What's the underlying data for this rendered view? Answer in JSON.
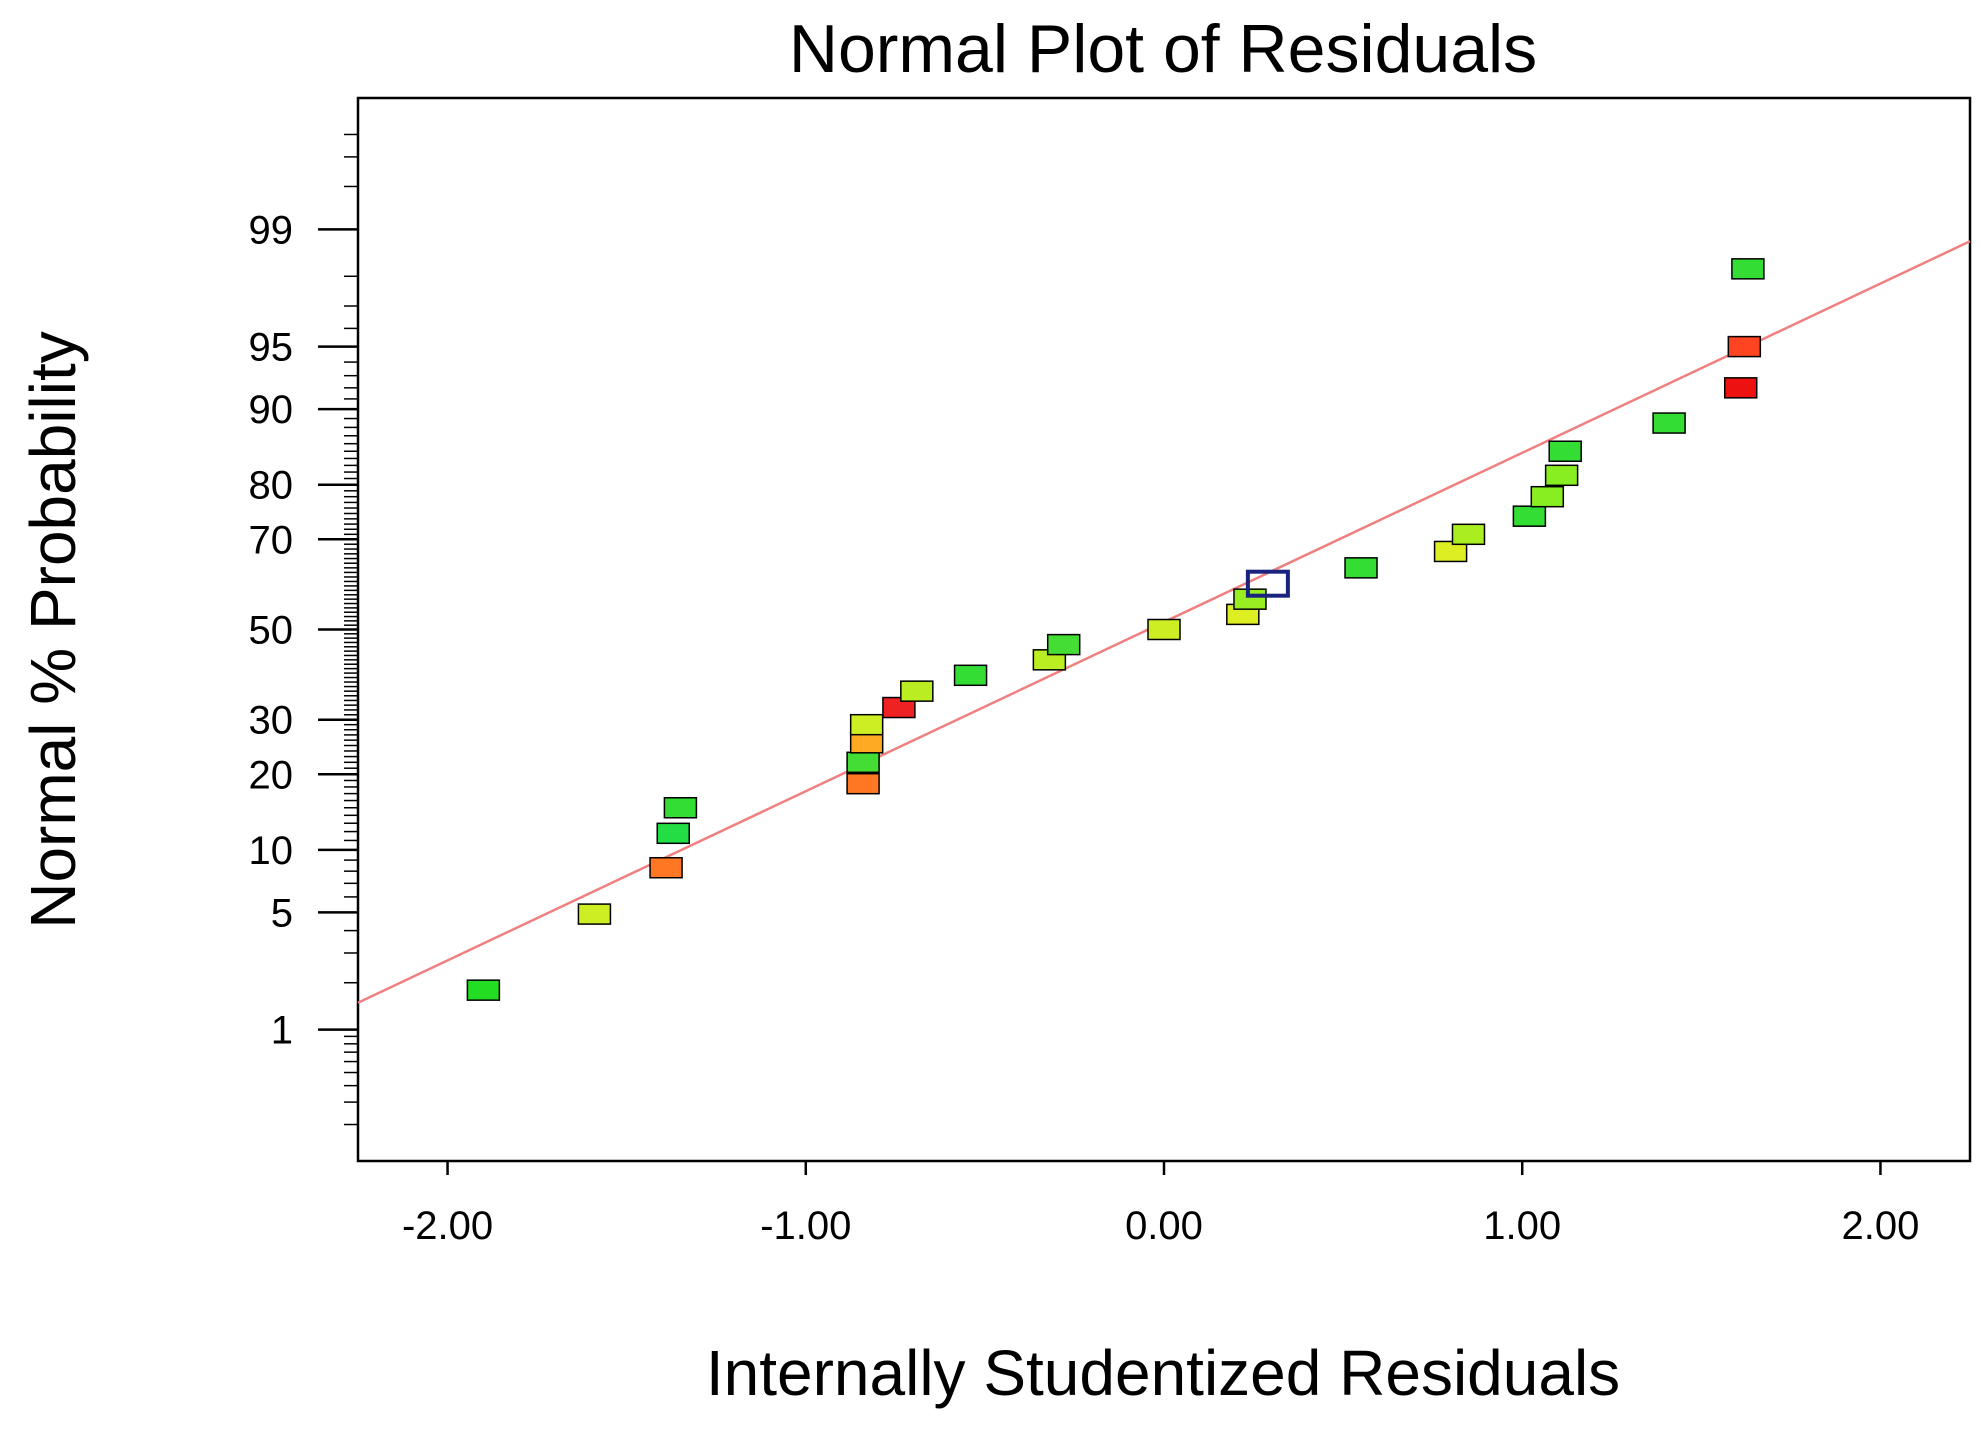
{
  "chart_data": {
    "type": "scatter",
    "title": "Normal Plot of Residuals",
    "xlabel": "Internally Studentized Residuals",
    "ylabel": "Normal % Probability",
    "xlim": [
      -2.25,
      2.25
    ],
    "ylim": [
      0.1,
      99.9
    ],
    "y_scale": "normal-probability",
    "x_ticks": [
      -2,
      -1,
      0,
      1,
      2
    ],
    "x_tick_labels": [
      "-2.00",
      "-1.00",
      "0.00",
      "1.00",
      "2.00"
    ],
    "y_ticks": [
      1,
      5,
      10,
      20,
      30,
      50,
      70,
      80,
      90,
      95,
      99
    ],
    "y_tick_labels": [
      "1",
      "5",
      "10",
      "20",
      "30",
      "50",
      "70",
      "80",
      "90",
      "95",
      "99"
    ],
    "grid": false,
    "reference_line": {
      "color": "#f08080",
      "points": [
        [
          -2.25,
          1.5
        ],
        [
          2.25,
          98.8
        ]
      ]
    },
    "points": [
      {
        "x": -1.9,
        "y": 1.8,
        "color": "#22dd22",
        "outline_only": false
      },
      {
        "x": -1.59,
        "y": 4.9,
        "color": "#ccee22",
        "outline_only": false
      },
      {
        "x": -1.39,
        "y": 8.3,
        "color": "#ff7722",
        "outline_only": false
      },
      {
        "x": -1.37,
        "y": 11.8,
        "color": "#22dd44",
        "outline_only": false
      },
      {
        "x": -1.35,
        "y": 15.0,
        "color": "#33dd33",
        "outline_only": false
      },
      {
        "x": -0.84,
        "y": 18.5,
        "color": "#ff7722",
        "outline_only": false
      },
      {
        "x": -0.84,
        "y": 22.0,
        "color": "#44dd33",
        "outline_only": false
      },
      {
        "x": -0.83,
        "y": 25.5,
        "color": "#ffaa22",
        "outline_only": false
      },
      {
        "x": -0.83,
        "y": 29.0,
        "color": "#ccee22",
        "outline_only": false
      },
      {
        "x": -0.74,
        "y": 32.5,
        "color": "#ee2222",
        "outline_only": false
      },
      {
        "x": -0.69,
        "y": 36.0,
        "color": "#bbee22",
        "outline_only": false
      },
      {
        "x": -0.54,
        "y": 39.5,
        "color": "#33dd33",
        "outline_only": false
      },
      {
        "x": -0.32,
        "y": 43.0,
        "color": "#bbee22",
        "outline_only": false
      },
      {
        "x": -0.28,
        "y": 46.5,
        "color": "#44dd33",
        "outline_only": false
      },
      {
        "x": 0.0,
        "y": 50.0,
        "color": "#ccee22",
        "outline_only": false
      },
      {
        "x": 0.22,
        "y": 53.5,
        "color": "#ddee22",
        "outline_only": false
      },
      {
        "x": 0.24,
        "y": 57.0,
        "color": "#99ee22",
        "outline_only": false
      },
      {
        "x": 0.29,
        "y": 60.5,
        "color": "#1a237e",
        "outline_only": true
      },
      {
        "x": 0.55,
        "y": 64.0,
        "color": "#33dd33",
        "outline_only": false
      },
      {
        "x": 0.8,
        "y": 67.5,
        "color": "#ddee22",
        "outline_only": false
      },
      {
        "x": 0.85,
        "y": 71.0,
        "color": "#aaee22",
        "outline_only": false
      },
      {
        "x": 1.02,
        "y": 74.5,
        "color": "#33dd33",
        "outline_only": false
      },
      {
        "x": 1.07,
        "y": 78.0,
        "color": "#88ee22",
        "outline_only": false
      },
      {
        "x": 1.11,
        "y": 81.5,
        "color": "#88ee22",
        "outline_only": false
      },
      {
        "x": 1.12,
        "y": 85.0,
        "color": "#33dd33",
        "outline_only": false
      },
      {
        "x": 1.41,
        "y": 88.5,
        "color": "#33dd33",
        "outline_only": false
      },
      {
        "x": 1.61,
        "y": 92.0,
        "color": "#ee1111",
        "outline_only": false
      },
      {
        "x": 1.62,
        "y": 95.0,
        "color": "#ff4422",
        "outline_only": false
      },
      {
        "x": 1.63,
        "y": 98.2,
        "color": "#33dd33",
        "outline_only": false
      }
    ]
  }
}
